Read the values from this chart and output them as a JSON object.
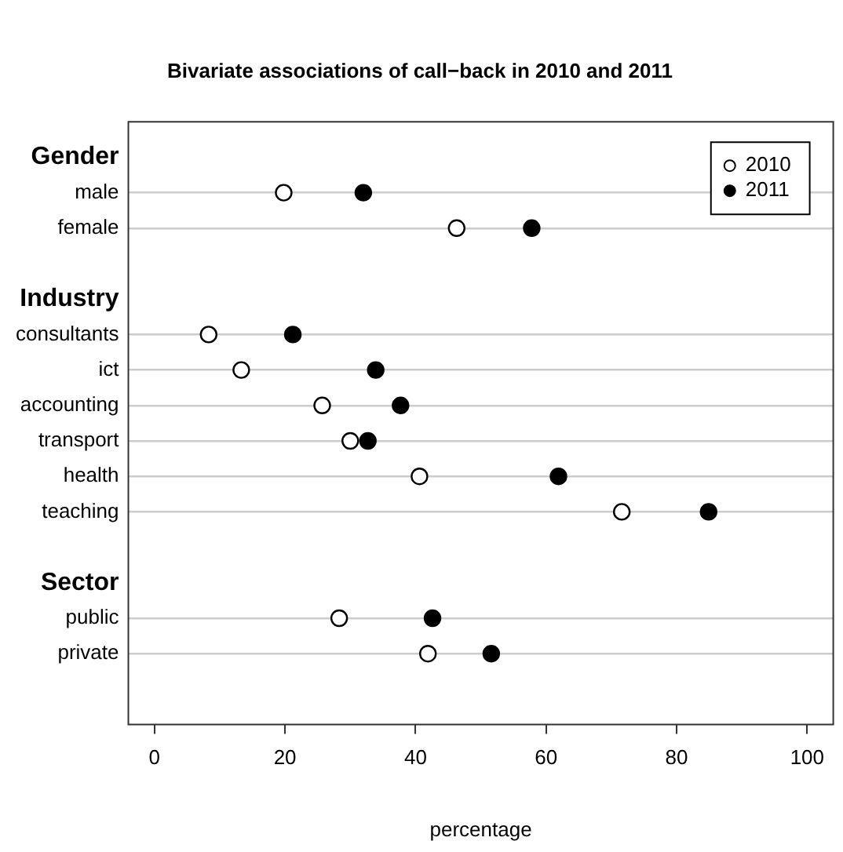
{
  "chart_data": {
    "type": "scatter",
    "title": "Bivariate associations of call−back in 2010 and 2011",
    "xlabel": "percentage",
    "orientation": "horizontal",
    "categories": [
      "Gender",
      "male",
      "female",
      null,
      "Industry",
      "consultants",
      "ict",
      "accounting",
      "transport",
      "health",
      "teaching",
      null,
      "Sector",
      "public",
      "private",
      null
    ],
    "series": [
      {
        "name": "2010",
        "color": "#ffffff",
        "values": [
          null,
          19.8,
          46.3,
          null,
          null,
          8.3,
          13.3,
          25.7,
          30.0,
          40.6,
          71.6,
          null,
          null,
          28.3,
          41.9,
          null
        ]
      },
      {
        "name": "2011",
        "color": "#000000",
        "values": [
          null,
          32.0,
          57.8,
          null,
          null,
          21.2,
          33.9,
          37.7,
          32.7,
          61.9,
          84.9,
          null,
          null,
          42.6,
          51.6,
          null
        ]
      }
    ],
    "xlim": [
      -4,
      104
    ],
    "xticks": [
      0,
      20,
      40,
      60,
      80,
      100
    ],
    "grid": "y",
    "legend": "top right",
    "marker": "circle"
  }
}
